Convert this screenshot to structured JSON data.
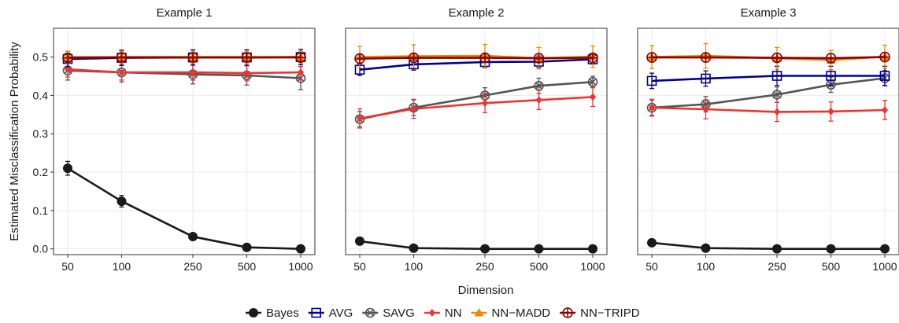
{
  "figure": {
    "xlabel": "Dimension",
    "ylabel": "Estimated Misclassification Probability",
    "legend_position": "bottom"
  },
  "legend": [
    {
      "name": "Bayes",
      "color": "#1a1a1a",
      "marker": "circle"
    },
    {
      "name": "AVG",
      "color": "#00008b",
      "marker": "square"
    },
    {
      "name": "SAVG",
      "color": "#555555",
      "marker": "circle-x"
    },
    {
      "name": "NN",
      "color": "#ee3333",
      "marker": "diamond"
    },
    {
      "name": "NN−MADD",
      "color": "#ee8800",
      "marker": "triangle"
    },
    {
      "name": "NN−TRIPD",
      "color": "#8b0000",
      "marker": "circle-plus"
    }
  ],
  "chart_data": [
    {
      "type": "line",
      "title": "Example 1",
      "x": [
        50,
        100,
        250,
        500,
        1000
      ],
      "xscale": "log",
      "xticks": [
        "50",
        "100",
        "250",
        "500",
        "1000"
      ],
      "ylim": [
        -0.015,
        0.575
      ],
      "yticks": [
        "0.0",
        "0.1",
        "0.2",
        "0.3",
        "0.4",
        "0.5"
      ],
      "grid": true,
      "series": [
        {
          "name": "SAVG",
          "values": [
            0.465,
            0.46,
            0.455,
            0.452,
            0.445
          ],
          "err": [
            0.025,
            0.025,
            0.025,
            0.025,
            0.03
          ]
        },
        {
          "name": "NN",
          "values": [
            0.468,
            0.46,
            0.46,
            0.458,
            0.46
          ],
          "err": [
            0.02,
            0.02,
            0.02,
            0.02,
            0.02
          ]
        },
        {
          "name": "AVG",
          "values": [
            0.495,
            0.498,
            0.499,
            0.499,
            0.5
          ],
          "err": [
            0.02,
            0.02,
            0.02,
            0.02,
            0.02
          ]
        },
        {
          "name": "NN−MADD",
          "values": [
            0.5,
            0.5,
            0.5,
            0.5,
            0.5
          ],
          "err": [
            0.015,
            0.015,
            0.015,
            0.015,
            0.015
          ]
        },
        {
          "name": "NN−TRIPD",
          "values": [
            0.498,
            0.499,
            0.499,
            0.499,
            0.499
          ],
          "err": [
            0.01,
            0.01,
            0.01,
            0.01,
            0.01
          ]
        },
        {
          "name": "Bayes",
          "values": [
            0.21,
            0.124,
            0.032,
            0.004,
            0.0
          ],
          "err": [
            0.018,
            0.015,
            0.005,
            0.002,
            0.0
          ]
        }
      ]
    },
    {
      "type": "line",
      "title": "Example 2",
      "x": [
        50,
        100,
        250,
        500,
        1000
      ],
      "xscale": "log",
      "xticks": [
        "50",
        "100",
        "250",
        "500",
        "1000"
      ],
      "ylim": [
        -0.015,
        0.575
      ],
      "yticks": [
        "0.0",
        "0.1",
        "0.2",
        "0.3",
        "0.4",
        "0.5"
      ],
      "grid": true,
      "series": [
        {
          "name": "SAVG",
          "values": [
            0.338,
            0.368,
            0.4,
            0.425,
            0.435
          ],
          "err": [
            0.02,
            0.02,
            0.02,
            0.02,
            0.015
          ]
        },
        {
          "name": "NN",
          "values": [
            0.34,
            0.365,
            0.38,
            0.388,
            0.396
          ],
          "err": [
            0.025,
            0.025,
            0.025,
            0.025,
            0.025
          ]
        },
        {
          "name": "AVG",
          "values": [
            0.467,
            0.481,
            0.487,
            0.488,
            0.494
          ],
          "err": [
            0.015,
            0.015,
            0.015,
            0.015,
            0.012
          ]
        },
        {
          "name": "NN−MADD",
          "values": [
            0.5,
            0.502,
            0.503,
            0.497,
            0.501
          ],
          "err": [
            0.028,
            0.03,
            0.03,
            0.028,
            0.028
          ]
        },
        {
          "name": "NN−TRIPD",
          "values": [
            0.496,
            0.498,
            0.498,
            0.497,
            0.498
          ],
          "err": [
            0.012,
            0.012,
            0.012,
            0.012,
            0.012
          ]
        },
        {
          "name": "Bayes",
          "values": [
            0.02,
            0.002,
            0.0,
            0.0,
            0.0
          ],
          "err": [
            0.003,
            0.001,
            0.0,
            0.0,
            0.0
          ]
        }
      ]
    },
    {
      "type": "line",
      "title": "Example 3",
      "x": [
        50,
        100,
        250,
        500,
        1000
      ],
      "xscale": "log",
      "xticks": [
        "50",
        "100",
        "250",
        "500",
        "1000"
      ],
      "ylim": [
        -0.015,
        0.575
      ],
      "yticks": [
        "0.0",
        "0.1",
        "0.2",
        "0.3",
        "0.4",
        "0.5"
      ],
      "grid": true,
      "series": [
        {
          "name": "SAVG",
          "values": [
            0.368,
            0.377,
            0.402,
            0.428,
            0.445
          ],
          "err": [
            0.02,
            0.02,
            0.02,
            0.02,
            0.02
          ]
        },
        {
          "name": "NN",
          "values": [
            0.368,
            0.364,
            0.357,
            0.358,
            0.362
          ],
          "err": [
            0.022,
            0.025,
            0.025,
            0.025,
            0.025
          ]
        },
        {
          "name": "AVG",
          "values": [
            0.438,
            0.444,
            0.451,
            0.451,
            0.451
          ],
          "err": [
            0.02,
            0.02,
            0.025,
            0.025,
            0.025
          ]
        },
        {
          "name": "NN−MADD",
          "values": [
            0.5,
            0.503,
            0.497,
            0.492,
            0.501
          ],
          "err": [
            0.03,
            0.032,
            0.028,
            0.025,
            0.03
          ]
        },
        {
          "name": "NN−TRIPD",
          "values": [
            0.499,
            0.499,
            0.498,
            0.497,
            0.5
          ],
          "err": [
            0.012,
            0.012,
            0.012,
            0.012,
            0.012
          ]
        },
        {
          "name": "Bayes",
          "values": [
            0.016,
            0.002,
            0.0,
            0.0,
            0.0
          ],
          "err": [
            0.003,
            0.001,
            0.0,
            0.0,
            0.0
          ]
        }
      ]
    }
  ]
}
